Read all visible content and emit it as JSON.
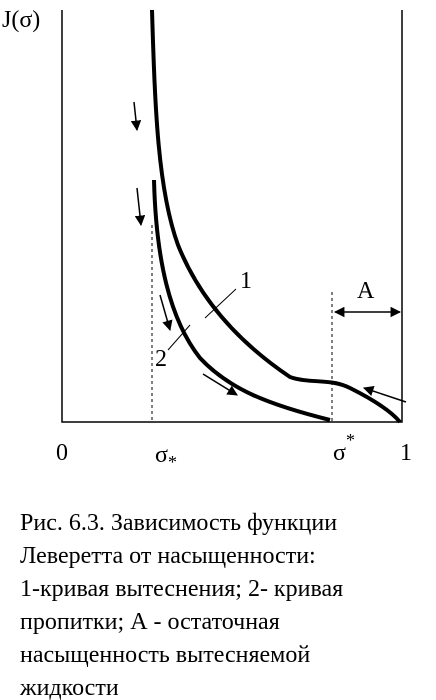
{
  "figure": {
    "y_axis_label": "J(σ)",
    "x_labels": {
      "zero": "0",
      "sigma_lower": {
        "base": "σ",
        "mark": "*"
      },
      "sigma_upper": {
        "base": "σ",
        "mark": "*"
      },
      "one": "1"
    },
    "curve_labels": {
      "curve1": "1",
      "curve2": "2",
      "residual": "A"
    }
  },
  "caption": {
    "lines": [
      "Рис. 6.3. Зависимость функции",
      "Леверетта от насыщенности:",
      "1-кривая вытеснения; 2- кривая",
      "пропитки; А - остаточная",
      "насыщенность вытесняемой",
      "жидкости"
    ]
  }
}
